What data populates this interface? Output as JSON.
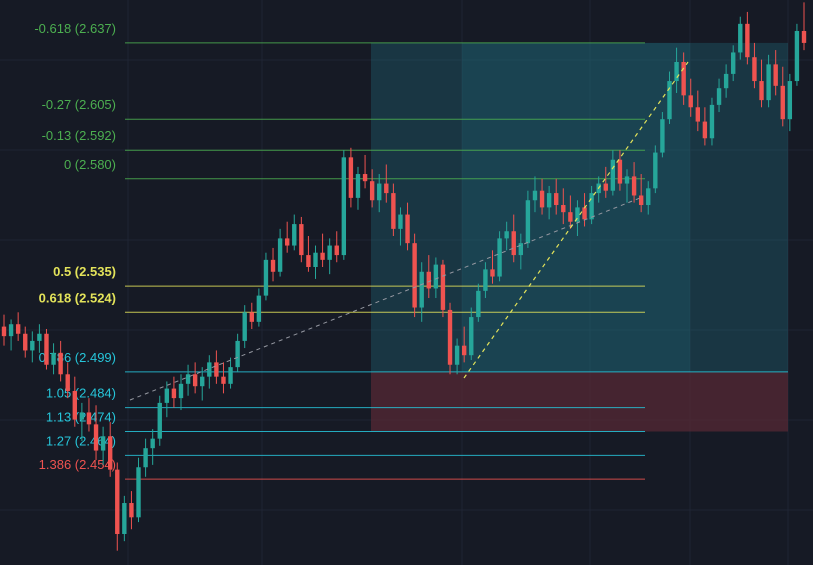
{
  "colors": {
    "background": "#161a25",
    "bull": "#26a69a",
    "bear": "#ef5350",
    "grid": "#1f2433",
    "trend": "#9598a1",
    "trend_active": "#e3e35a",
    "zone_blue": "#1f6c7a",
    "zone_red": "#5a2a35"
  },
  "chart_data": {
    "type": "candlestick",
    "title": "",
    "xlabel": "",
    "ylabel": "",
    "ylim": [
      2.418,
      2.655
    ],
    "fib_levels": [
      {
        "ratio": "-0.618",
        "price": 2.637,
        "label": "-0.618 (2.637)",
        "color": "#4caf50"
      },
      {
        "ratio": "-0.27",
        "price": 2.605,
        "label": "-0.27 (2.605)",
        "color": "#4caf50"
      },
      {
        "ratio": "-0.13",
        "price": 2.592,
        "label": "-0.13 (2.592)",
        "color": "#4caf50"
      },
      {
        "ratio": "0",
        "price": 2.58,
        "label": "0 (2.580)",
        "color": "#4caf50"
      },
      {
        "ratio": "0.5",
        "price": 2.535,
        "label": "0.5 (2.535)",
        "color": "#e3e35a"
      },
      {
        "ratio": "0.618",
        "price": 2.524,
        "label": "0.618 (2.524)",
        "color": "#e3e35a"
      },
      {
        "ratio": "0.786",
        "price": 2.499,
        "label": "0.786 (2.499)",
        "color": "#26c6da"
      },
      {
        "ratio": "1.05",
        "price": 2.484,
        "label": "1.05 (2.484)",
        "color": "#26c6da"
      },
      {
        "ratio": "1.13",
        "price": 2.474,
        "label": "1.13 (2.474)",
        "color": "#26c6da"
      },
      {
        "ratio": "1.27",
        "price": 2.464,
        "label": "1.27 (2.464)",
        "color": "#26c6da"
      },
      {
        "ratio": "1.386",
        "price": 2.454,
        "label": "1.386 (2.454)",
        "color": "#ef5350"
      }
    ],
    "candles": [
      [
        2.518,
        2.523,
        2.51,
        2.514
      ],
      [
        2.514,
        2.521,
        2.508,
        2.519
      ],
      [
        2.519,
        2.524,
        2.512,
        2.515
      ],
      [
        2.515,
        2.518,
        2.505,
        2.508
      ],
      [
        2.508,
        2.516,
        2.503,
        2.512
      ],
      [
        2.512,
        2.519,
        2.507,
        2.515
      ],
      [
        2.515,
        2.517,
        2.5,
        2.502
      ],
      [
        2.502,
        2.511,
        2.498,
        2.507
      ],
      [
        2.507,
        2.512,
        2.495,
        2.498
      ],
      [
        2.498,
        2.503,
        2.488,
        2.491
      ],
      [
        2.491,
        2.497,
        2.476,
        2.479
      ],
      [
        2.479,
        2.486,
        2.47,
        2.482
      ],
      [
        2.482,
        2.488,
        2.474,
        2.477
      ],
      [
        2.477,
        2.485,
        2.462,
        2.466
      ],
      [
        2.466,
        2.476,
        2.46,
        2.472
      ],
      [
        2.472,
        2.478,
        2.455,
        2.458
      ],
      [
        2.458,
        2.461,
        2.424,
        2.431
      ],
      [
        2.431,
        2.447,
        2.428,
        2.444
      ],
      [
        2.444,
        2.449,
        2.433,
        2.438
      ],
      [
        2.438,
        2.463,
        2.436,
        2.459
      ],
      [
        2.459,
        2.471,
        2.455,
        2.467
      ],
      [
        2.467,
        2.475,
        2.46,
        2.471
      ],
      [
        2.471,
        2.489,
        2.468,
        2.486
      ],
      [
        2.486,
        2.495,
        2.48,
        2.492
      ],
      [
        2.492,
        2.497,
        2.484,
        2.488
      ],
      [
        2.488,
        2.498,
        2.483,
        2.494
      ],
      [
        2.494,
        2.502,
        2.489,
        2.498
      ],
      [
        2.498,
        2.503,
        2.49,
        2.493
      ],
      [
        2.493,
        2.501,
        2.487,
        2.497
      ],
      [
        2.497,
        2.506,
        2.492,
        2.503
      ],
      [
        2.503,
        2.508,
        2.494,
        2.497
      ],
      [
        2.497,
        2.503,
        2.49,
        2.494
      ],
      [
        2.494,
        2.505,
        2.492,
        2.501
      ],
      [
        2.501,
        2.515,
        2.499,
        2.512
      ],
      [
        2.512,
        2.527,
        2.509,
        2.524
      ],
      [
        2.524,
        2.528,
        2.517,
        2.52
      ],
      [
        2.52,
        2.534,
        2.518,
        2.531
      ],
      [
        2.531,
        2.549,
        2.529,
        2.546
      ],
      [
        2.546,
        2.551,
        2.537,
        2.541
      ],
      [
        2.541,
        2.559,
        2.539,
        2.555
      ],
      [
        2.555,
        2.562,
        2.549,
        2.552
      ],
      [
        2.552,
        2.565,
        2.55,
        2.561
      ],
      [
        2.561,
        2.564,
        2.545,
        2.548
      ],
      [
        2.548,
        2.556,
        2.541,
        2.543
      ],
      [
        2.543,
        2.552,
        2.538,
        2.549
      ],
      [
        2.549,
        2.557,
        2.543,
        2.546
      ],
      [
        2.546,
        2.555,
        2.54,
        2.552
      ],
      [
        2.552,
        2.558,
        2.545,
        2.548
      ],
      [
        2.548,
        2.592,
        2.546,
        2.589
      ],
      [
        2.589,
        2.593,
        2.568,
        2.572
      ],
      [
        2.572,
        2.585,
        2.567,
        2.582
      ],
      [
        2.582,
        2.59,
        2.576,
        2.579
      ],
      [
        2.579,
        2.584,
        2.568,
        2.571
      ],
      [
        2.571,
        2.582,
        2.566,
        2.578
      ],
      [
        2.578,
        2.586,
        2.57,
        2.574
      ],
      [
        2.574,
        2.578,
        2.556,
        2.559
      ],
      [
        2.559,
        2.568,
        2.552,
        2.565
      ],
      [
        2.565,
        2.57,
        2.55,
        2.553
      ],
      [
        2.553,
        2.557,
        2.522,
        2.526
      ],
      [
        2.526,
        2.545,
        2.52,
        2.541
      ],
      [
        2.541,
        2.548,
        2.53,
        2.534
      ],
      [
        2.534,
        2.547,
        2.53,
        2.544
      ],
      [
        2.544,
        2.546,
        2.522,
        2.525
      ],
      [
        2.525,
        2.528,
        2.498,
        2.502
      ],
      [
        2.502,
        2.513,
        2.498,
        2.51
      ],
      [
        2.51,
        2.518,
        2.503,
        2.506
      ],
      [
        2.506,
        2.526,
        2.504,
        2.522
      ],
      [
        2.522,
        2.536,
        2.52,
        2.533
      ],
      [
        2.533,
        2.545,
        2.53,
        2.542
      ],
      [
        2.542,
        2.55,
        2.536,
        2.539
      ],
      [
        2.539,
        2.558,
        2.537,
        2.555
      ],
      [
        2.555,
        2.562,
        2.55,
        2.558
      ],
      [
        2.558,
        2.565,
        2.545,
        2.548
      ],
      [
        2.548,
        2.557,
        2.542,
        2.553
      ],
      [
        2.553,
        2.575,
        2.551,
        2.571
      ],
      [
        2.571,
        2.581,
        2.566,
        2.575
      ],
      [
        2.575,
        2.58,
        2.565,
        2.568
      ],
      [
        2.568,
        2.577,
        2.563,
        2.574
      ],
      [
        2.574,
        2.58,
        2.565,
        2.569
      ],
      [
        2.569,
        2.576,
        2.561,
        2.566
      ],
      [
        2.566,
        2.573,
        2.559,
        2.562
      ],
      [
        2.562,
        2.571,
        2.556,
        2.568
      ],
      [
        2.568,
        2.574,
        2.56,
        2.563
      ],
      [
        2.563,
        2.577,
        2.561,
        2.574
      ],
      [
        2.574,
        2.581,
        2.57,
        2.578
      ],
      [
        2.578,
        2.585,
        2.572,
        2.575
      ],
      [
        2.575,
        2.592,
        2.573,
        2.588
      ],
      [
        2.588,
        2.592,
        2.575,
        2.578
      ],
      [
        2.578,
        2.584,
        2.57,
        2.581
      ],
      [
        2.581,
        2.587,
        2.57,
        2.573
      ],
      [
        2.573,
        2.582,
        2.566,
        2.569
      ],
      [
        2.569,
        2.579,
        2.565,
        2.576
      ],
      [
        2.576,
        2.594,
        2.574,
        2.591
      ],
      [
        2.591,
        2.608,
        2.589,
        2.605
      ],
      [
        2.605,
        2.625,
        2.603,
        2.621
      ],
      [
        2.621,
        2.635,
        2.616,
        2.629
      ],
      [
        2.629,
        2.633,
        2.611,
        2.615
      ],
      [
        2.615,
        2.622,
        2.606,
        2.61
      ],
      [
        2.61,
        2.617,
        2.6,
        2.604
      ],
      [
        2.604,
        2.61,
        2.594,
        2.597
      ],
      [
        2.597,
        2.614,
        2.594,
        2.611
      ],
      [
        2.611,
        2.622,
        2.608,
        2.618
      ],
      [
        2.618,
        2.628,
        2.614,
        2.624
      ],
      [
        2.624,
        2.636,
        2.621,
        2.633
      ],
      [
        2.633,
        2.648,
        2.63,
        2.645
      ],
      [
        2.645,
        2.65,
        2.628,
        2.631
      ],
      [
        2.631,
        2.637,
        2.618,
        2.621
      ],
      [
        2.621,
        2.63,
        2.61,
        2.613
      ],
      [
        2.613,
        2.632,
        2.61,
        2.628
      ],
      [
        2.628,
        2.634,
        2.615,
        2.619
      ],
      [
        2.619,
        2.627,
        2.602,
        2.605
      ],
      [
        2.605,
        2.624,
        2.6,
        2.621
      ],
      [
        2.621,
        2.645,
        2.619,
        2.642
      ],
      [
        2.642,
        2.654,
        2.634,
        2.637
      ]
    ]
  }
}
